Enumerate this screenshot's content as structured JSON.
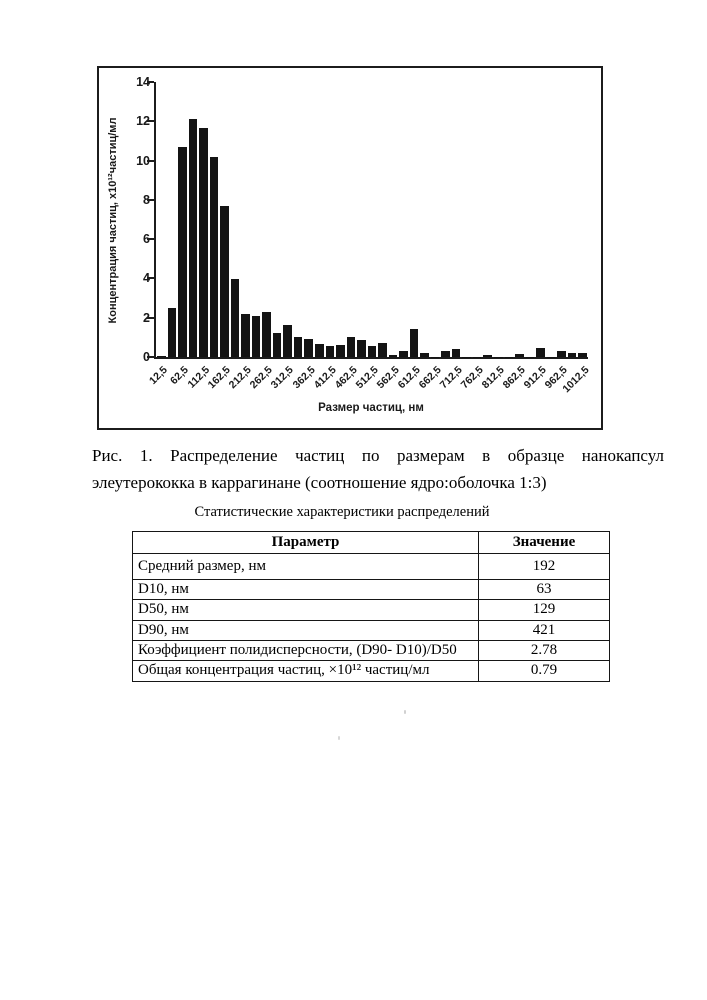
{
  "figure": {
    "caption_line1": "Рис. 1. Распределение частиц по размерам в образце нанокапсул",
    "caption_line2": "элеутерококка в каррагинане (соотношение ядро:оболочка 1:3)"
  },
  "table_section": {
    "heading": "Статистические характеристики распределений",
    "columns": [
      "Параметр",
      "Значение"
    ],
    "rows": [
      [
        "Средний размер, нм",
        "192"
      ],
      [
        "D10, нм",
        "63"
      ],
      [
        "D50, нм",
        "129"
      ],
      [
        "D90, нм",
        "421"
      ],
      [
        "Коэффициент полидисперсности, (D90- D10)/D50",
        "2.78"
      ],
      [
        "Общая концентрация частиц, ×10¹² частиц/мл",
        "0.79"
      ]
    ]
  },
  "chart_data": {
    "type": "bar",
    "title": "",
    "xlabel": "Размер частиц, нм",
    "ylabel": "Концентрация частиц, х10¹²частиц/мл",
    "x": [
      12.5,
      37.5,
      62.5,
      87.5,
      112.5,
      137.5,
      162.5,
      187.5,
      212.5,
      237.5,
      262.5,
      287.5,
      312.5,
      337.5,
      362.5,
      387.5,
      412.5,
      437.5,
      462.5,
      487.5,
      512.5,
      537.5,
      562.5,
      587.5,
      612.5,
      637.5,
      662.5,
      687.5,
      712.5,
      737.5,
      762.5,
      787.5,
      812.5,
      837.5,
      862.5,
      887.5,
      912.5,
      937.5,
      962.5,
      987.5,
      1012.5
    ],
    "values": [
      0.05,
      2.5,
      10.7,
      12.1,
      11.65,
      10.2,
      7.7,
      3.95,
      2.2,
      2.1,
      2.3,
      1.2,
      1.65,
      1.0,
      0.9,
      0.65,
      0.55,
      0.6,
      1.0,
      0.85,
      0.55,
      0.7,
      0.1,
      0.3,
      1.45,
      0.2,
      0.02,
      0.3,
      0.4,
      0.02,
      0.02,
      0.1,
      0.02,
      0.02,
      0.15,
      0.02,
      0.45,
      0.02,
      0.3,
      0.2,
      0.2
    ],
    "x_tick_labels": [
      "12,5",
      "62,5",
      "112,5",
      "162,5",
      "212,5",
      "262,5",
      "312,5",
      "362,5",
      "412,5",
      "462,5",
      "512,5",
      "562,5",
      "612,5",
      "662,5",
      "712,5",
      "762,5",
      "812,5",
      "862,5",
      "912,5",
      "962,5",
      "1012,5"
    ],
    "x_tick_every": 2,
    "y_ticks": [
      0,
      2,
      4,
      6,
      8,
      10,
      12,
      14
    ],
    "ylim": [
      0,
      14
    ],
    "grid": false,
    "legend": null,
    "bar_color": "#141414"
  },
  "colors": {
    "background": "#ffffff",
    "ink": "#1a1a1a",
    "bar": "#141414"
  }
}
